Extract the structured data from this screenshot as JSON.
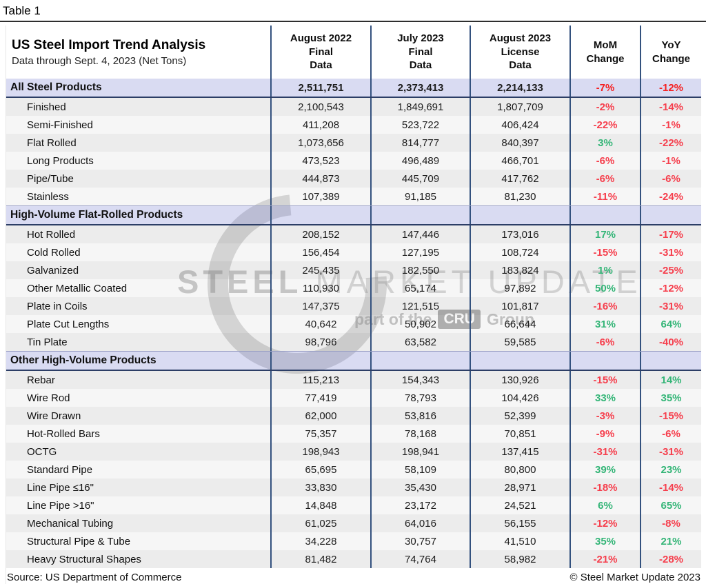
{
  "page_label": "Table 1",
  "watermark": {
    "brand_bold": "STEEL",
    "brand_light": "MARKET UPDATE",
    "tagline_pre": "part of the",
    "tagline_badge": "CRU",
    "tagline_post": "Group"
  },
  "footer": {
    "source": "Source: US Department of Commerce",
    "copyright": "© Steel Market Update 2023"
  },
  "colors": {
    "negative_red": "#f63e4c",
    "positive_green": "#34b577",
    "section_lavender": "#d9dbf2",
    "stripe_dark": "#ececec",
    "stripe_light": "#f5f5f5",
    "divider_navy": "#33517e"
  },
  "chart_data": {
    "type": "table",
    "title": "US Steel Import Trend Analysis",
    "subtitle": "Data through Sept. 4, 2023 (Net Tons)",
    "column_headers": [
      {
        "lines": [
          "August 2022",
          "Final",
          "Data"
        ]
      },
      {
        "lines": [
          "July 2023",
          "Final",
          "Data"
        ]
      },
      {
        "lines": [
          "August 2023",
          "License",
          "Data"
        ]
      },
      {
        "lines": [
          "MoM",
          "Change"
        ]
      },
      {
        "lines": [
          "YoY",
          "Change"
        ]
      }
    ],
    "rows": [
      {
        "kind": "total",
        "label": "All Steel Products",
        "values": [
          "2,511,751",
          "2,373,413",
          "2,214,133",
          "-7%",
          "-12%"
        ]
      },
      {
        "kind": "data",
        "label": "Finished",
        "values": [
          "2,100,543",
          "1,849,691",
          "1,807,709",
          "-2%",
          "-14%"
        ]
      },
      {
        "kind": "data",
        "label": "Semi-Finished",
        "values": [
          "411,208",
          "523,722",
          "406,424",
          "-22%",
          "-1%"
        ]
      },
      {
        "kind": "data",
        "label": "Flat Rolled",
        "values": [
          "1,073,656",
          "814,777",
          "840,397",
          "3%",
          "-22%"
        ]
      },
      {
        "kind": "data",
        "label": "Long Products",
        "values": [
          "473,523",
          "496,489",
          "466,701",
          "-6%",
          "-1%"
        ]
      },
      {
        "kind": "data",
        "label": "Pipe/Tube",
        "values": [
          "444,873",
          "445,709",
          "417,762",
          "-6%",
          "-6%"
        ]
      },
      {
        "kind": "data",
        "label": "Stainless",
        "values": [
          "107,389",
          "91,185",
          "81,230",
          "-11%",
          "-24%"
        ]
      },
      {
        "kind": "section",
        "label": "High-Volume Flat-Rolled Products",
        "values": [
          "",
          "",
          "",
          "",
          ""
        ]
      },
      {
        "kind": "data",
        "label": "Hot Rolled",
        "values": [
          "208,152",
          "147,446",
          "173,016",
          "17%",
          "-17%"
        ]
      },
      {
        "kind": "data",
        "label": "Cold Rolled",
        "values": [
          "156,454",
          "127,195",
          "108,724",
          "-15%",
          "-31%"
        ]
      },
      {
        "kind": "data",
        "label": "Galvanized",
        "values": [
          "245,435",
          "182,550",
          "183,824",
          "1%",
          "-25%"
        ]
      },
      {
        "kind": "data",
        "label": "Other Metallic Coated",
        "values": [
          "110,930",
          "65,174",
          "97,892",
          "50%",
          "-12%"
        ]
      },
      {
        "kind": "data",
        "label": "Plate in Coils",
        "values": [
          "147,375",
          "121,515",
          "101,817",
          "-16%",
          "-31%"
        ]
      },
      {
        "kind": "data",
        "label": "Plate Cut Lengths",
        "values": [
          "40,642",
          "50,902",
          "66,644",
          "31%",
          "64%"
        ]
      },
      {
        "kind": "data",
        "label": "Tin Plate",
        "values": [
          "98,796",
          "63,582",
          "59,585",
          "-6%",
          "-40%"
        ]
      },
      {
        "kind": "section",
        "label": "Other High-Volume Products",
        "values": [
          "",
          "",
          "",
          "",
          ""
        ]
      },
      {
        "kind": "data",
        "label": "Rebar",
        "values": [
          "115,213",
          "154,343",
          "130,926",
          "-15%",
          "14%"
        ]
      },
      {
        "kind": "data",
        "label": "Wire Rod",
        "values": [
          "77,419",
          "78,793",
          "104,426",
          "33%",
          "35%"
        ]
      },
      {
        "kind": "data",
        "label": "Wire Drawn",
        "values": [
          "62,000",
          "53,816",
          "52,399",
          "-3%",
          "-15%"
        ]
      },
      {
        "kind": "data",
        "label": "Hot-Rolled Bars",
        "values": [
          "75,357",
          "78,168",
          "70,851",
          "-9%",
          "-6%"
        ]
      },
      {
        "kind": "data",
        "label": "OCTG",
        "values": [
          "198,943",
          "198,941",
          "137,415",
          "-31%",
          "-31%"
        ]
      },
      {
        "kind": "data",
        "label": "Standard Pipe",
        "values": [
          "65,695",
          "58,109",
          "80,800",
          "39%",
          "23%"
        ]
      },
      {
        "kind": "data",
        "label": "Line Pipe ≤16\"",
        "values": [
          "33,830",
          "35,430",
          "28,971",
          "-18%",
          "-14%"
        ]
      },
      {
        "kind": "data",
        "label": "Line Pipe >16\"",
        "values": [
          "14,848",
          "23,172",
          "24,521",
          "6%",
          "65%"
        ]
      },
      {
        "kind": "data",
        "label": "Mechanical Tubing",
        "values": [
          "61,025",
          "64,016",
          "56,155",
          "-12%",
          "-8%"
        ]
      },
      {
        "kind": "data",
        "label": "Structural Pipe & Tube",
        "values": [
          "34,228",
          "30,757",
          "41,510",
          "35%",
          "21%"
        ]
      },
      {
        "kind": "data",
        "label": "Heavy Structural Shapes",
        "values": [
          "81,482",
          "74,764",
          "58,982",
          "-21%",
          "-28%"
        ]
      }
    ]
  }
}
